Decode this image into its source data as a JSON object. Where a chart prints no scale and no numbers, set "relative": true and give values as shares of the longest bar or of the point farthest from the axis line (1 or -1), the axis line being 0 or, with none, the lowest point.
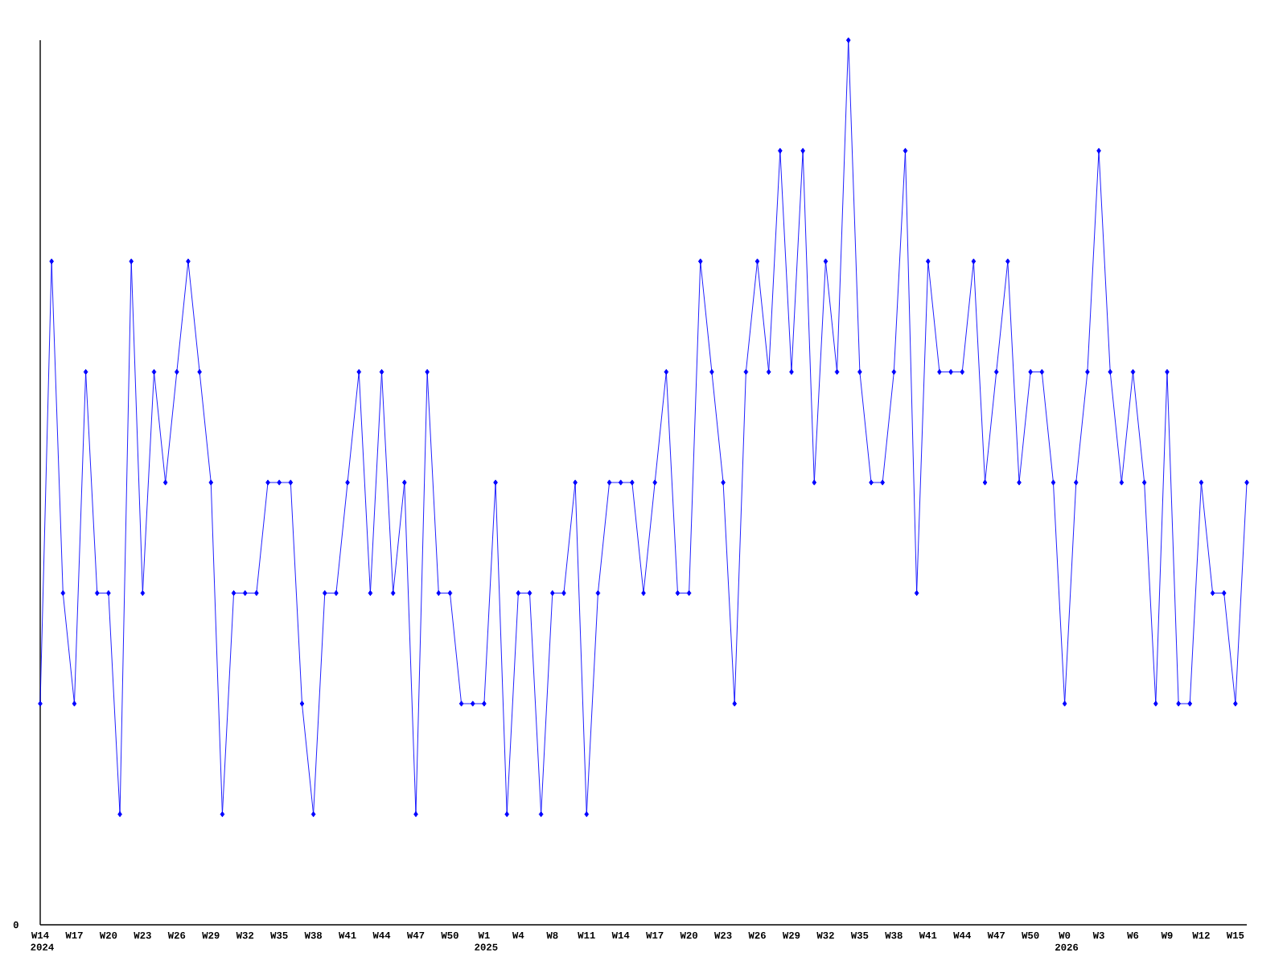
{
  "chart_data": {
    "type": "line",
    "relative": true,
    "color": "#0000ff",
    "marker": "diamond",
    "line_style": "solid",
    "categories": [
      "W14 2024",
      null,
      null,
      "W17",
      null,
      null,
      "W20",
      null,
      null,
      "W23",
      null,
      null,
      "W26",
      null,
      null,
      "W29",
      null,
      null,
      "W32",
      null,
      null,
      "W35",
      null,
      null,
      "W38",
      null,
      null,
      "W41",
      null,
      null,
      "W44",
      null,
      null,
      "W47",
      null,
      null,
      "W50",
      null,
      null,
      "W1 2025",
      null,
      null,
      "W4",
      null,
      null,
      "W8",
      null,
      null,
      "W11",
      null,
      null,
      "W14",
      null,
      null,
      "W17",
      null,
      null,
      "W20",
      null,
      null,
      "W23",
      null,
      null,
      "W26",
      null,
      null,
      "W29",
      null,
      null,
      "W32",
      null,
      null,
      "W35",
      null,
      null,
      "W38",
      null,
      null,
      "W41",
      null,
      null,
      "W44",
      null,
      null,
      "W47",
      null,
      null,
      "W50",
      null,
      null,
      "W0 2026",
      null,
      null,
      "W3",
      null,
      null,
      "W6",
      null,
      null,
      "W9",
      null,
      null,
      "W12",
      null,
      null,
      "W15",
      null
    ],
    "values": [
      0.25,
      0.75,
      0.375,
      0.25,
      0.625,
      0.375,
      0.375,
      0.125,
      0.75,
      0.375,
      0.625,
      0.5,
      0.625,
      0.75,
      0.625,
      0.5,
      0.125,
      0.375,
      0.375,
      0.375,
      0.5,
      0.5,
      0.5,
      0.25,
      0.125,
      0.375,
      0.375,
      0.5,
      0.625,
      0.375,
      0.625,
      0.375,
      0.5,
      0.125,
      0.625,
      0.375,
      0.375,
      0.25,
      0.25,
      0.25,
      0.5,
      0.125,
      0.375,
      0.375,
      0.125,
      0.375,
      0.375,
      0.5,
      0.125,
      0.375,
      0.5,
      0.5,
      0.5,
      0.375,
      0.5,
      0.625,
      0.375,
      0.375,
      0.75,
      0.625,
      0.5,
      0.25,
      0.625,
      0.75,
      0.625,
      0.875,
      0.625,
      0.875,
      0.5,
      0.75,
      0.625,
      1,
      0.625,
      0.5,
      0.5,
      0.625,
      0.875,
      0.375,
      0.75,
      0.625,
      0.625,
      0.625,
      0.75,
      0.5,
      0.625,
      0.75,
      0.5,
      0.625,
      0.625,
      0.5,
      0.25,
      0.5,
      0.625,
      0.875,
      0.625,
      0.5,
      0.625,
      0.5,
      0.25,
      0.625,
      0.25,
      0.25,
      0.5,
      0.375,
      0.375,
      0.25,
      0.5
    ],
    "annotations": [
      "0"
    ]
  }
}
